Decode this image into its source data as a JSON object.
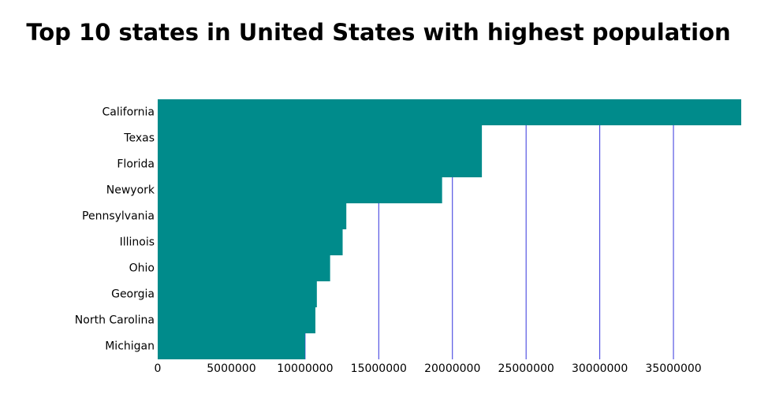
{
  "chart_data": {
    "type": "bar",
    "orientation": "horizontal",
    "title": "Top 10 states in United States with highest population",
    "xlabel": "",
    "ylabel": "",
    "categories": [
      "California",
      "Texas",
      "Florida",
      "Newyork",
      "Pennsylvania",
      "Illinois",
      "Ohio",
      "Georgia",
      "North Carolina",
      "Michigan"
    ],
    "values": [
      39600000,
      22000000,
      22000000,
      19300000,
      12800000,
      12550000,
      11700000,
      10800000,
      10700000,
      10000000
    ],
    "xlim": [
      0,
      39600000
    ],
    "x_ticks": [
      0,
      5000000,
      10000000,
      15000000,
      20000000,
      25000000,
      30000000,
      35000000
    ],
    "x_tick_labels": [
      "0",
      "5000000",
      "10000000",
      "15000000",
      "20000000",
      "25000000",
      "30000000",
      "35000000"
    ],
    "grid": "vertical",
    "legend": "none",
    "colors": {
      "bar": "#008b8b",
      "grid": "#3333dd",
      "text": "#000000"
    }
  }
}
